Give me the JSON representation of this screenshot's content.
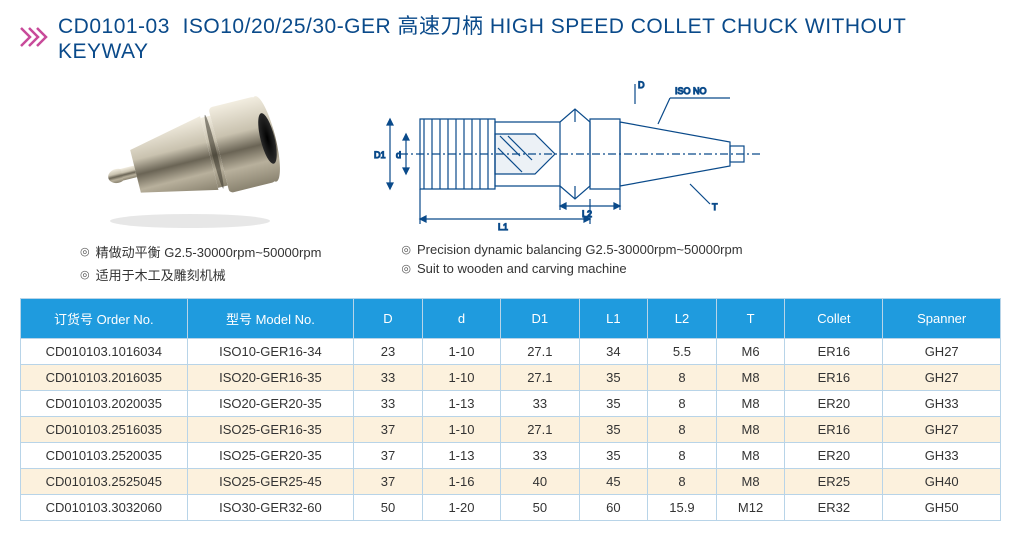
{
  "header": {
    "code": "CD0101-03",
    "title_cn": "ISO10/20/25/30-GER 高速刀柄",
    "title_en": "HIGH SPEED COLLET CHUCK WITHOUT KEYWAY",
    "chevron_color": "#c84a9a"
  },
  "diagram": {
    "label_D": "D",
    "label_iso": "ISO NO",
    "label_d": "d",
    "label_D1": "D1",
    "label_L1": "L1",
    "label_L2": "L2",
    "label_T": "T",
    "stroke": "#0a4a8a"
  },
  "bullets": {
    "cn1": "精做动平衡 G2.5-30000rpm~50000rpm",
    "cn2": "适用于木工及雕刻机械",
    "en1": "Precision dynamic balancing G2.5-30000rpm~50000rpm",
    "en2": "Suit to wooden and carving machine"
  },
  "table": {
    "header_bg": "#1f9bde",
    "border_color": "#b8d4e8",
    "alt_row_bg": "#fcf1dd",
    "columns": [
      "订货号 Order No.",
      "型号  Model No.",
      "D",
      "d",
      "D1",
      "L1",
      "L2",
      "T",
      "Collet",
      "Spanner"
    ],
    "rows": [
      [
        "CD010103.1016034",
        "ISO10-GER16-34",
        "23",
        "1-10",
        "27.1",
        "34",
        "5.5",
        "M6",
        "ER16",
        "GH27"
      ],
      [
        "CD010103.2016035",
        "ISO20-GER16-35",
        "33",
        "1-10",
        "27.1",
        "35",
        "8",
        "M8",
        "ER16",
        "GH27"
      ],
      [
        "CD010103.2020035",
        "ISO20-GER20-35",
        "33",
        "1-13",
        "33",
        "35",
        "8",
        "M8",
        "ER20",
        "GH33"
      ],
      [
        "CD010103.2516035",
        "ISO25-GER16-35",
        "37",
        "1-10",
        "27.1",
        "35",
        "8",
        "M8",
        "ER16",
        "GH27"
      ],
      [
        "CD010103.2520035",
        "ISO25-GER20-35",
        "37",
        "1-13",
        "33",
        "35",
        "8",
        "M8",
        "ER20",
        "GH33"
      ],
      [
        "CD010103.2525045",
        "ISO25-GER25-45",
        "37",
        "1-16",
        "40",
        "45",
        "8",
        "M8",
        "ER25",
        "GH40"
      ],
      [
        "CD010103.3032060",
        "ISO30-GER32-60",
        "50",
        "1-20",
        "50",
        "60",
        "15.9",
        "M12",
        "ER32",
        "GH50"
      ]
    ],
    "col_widths": [
      "17%",
      "17%",
      "7%",
      "8%",
      "8%",
      "7%",
      "7%",
      "7%",
      "10%",
      "12%"
    ]
  }
}
